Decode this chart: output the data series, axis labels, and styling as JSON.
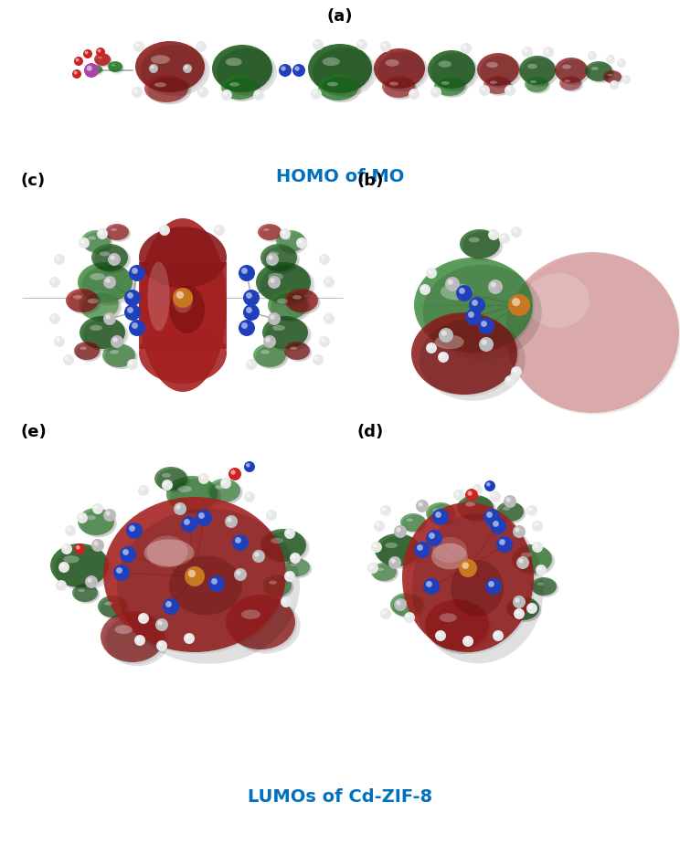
{
  "title_a": "(a)",
  "label_homo": "HOMO of MO",
  "label_lumos": "LUMOs of Cd-ZIF-8",
  "label_b": "(b)",
  "label_c": "(c)",
  "label_d": "(d)",
  "label_e": "(e)",
  "label_color": "#0070C0",
  "panel_label_color": "#000000",
  "bg_color": "#ffffff",
  "dark_red": "#8B1A1A",
  "med_red": "#A52020",
  "light_red": "#C46868",
  "pale_red": "#D49090",
  "dark_green": "#1A5C1A",
  "med_green": "#228822",
  "light_green": "#3A8A3A",
  "pale_green": "#5AAA5A",
  "orange": "#C87820",
  "blue": "#2040BB",
  "grey_atom": "#BBBBBB",
  "white_atom": "#E8E8E8",
  "purple": "#AA44AA",
  "red_atom": "#CC2222",
  "figsize": [
    7.44,
    9.24
  ],
  "dpi": 100
}
